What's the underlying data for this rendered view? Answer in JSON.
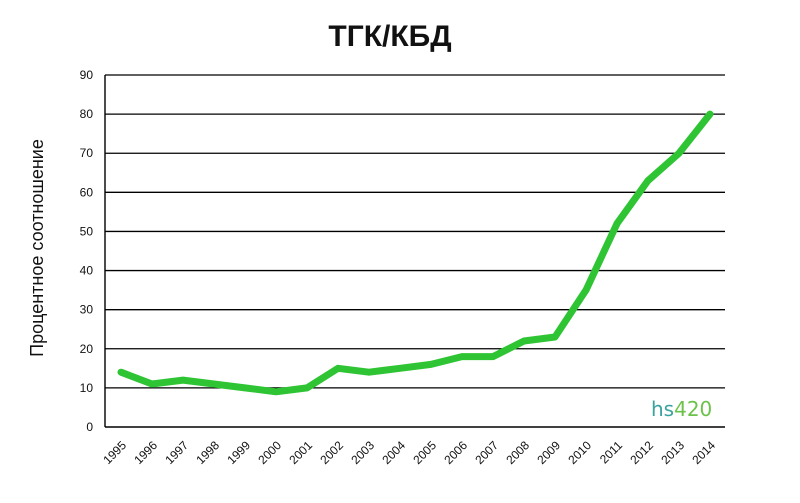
{
  "chart_data": {
    "type": "line",
    "title": "ТГК/КБД",
    "xlabel": "",
    "ylabel": "Процентное соотношение",
    "ylim": [
      0,
      90
    ],
    "yticks": [
      "0",
      "10",
      "20",
      "30",
      "40",
      "50",
      "60",
      "70",
      "80",
      "90"
    ],
    "categories": [
      "1995",
      "1996",
      "1997",
      "1998",
      "1999",
      "2000",
      "2001",
      "2002",
      "2003",
      "2004",
      "2005",
      "2006",
      "2007",
      "2008",
      "2009",
      "2010",
      "2011",
      "2012",
      "2013",
      "2014"
    ],
    "series": [
      {
        "values": [
          14,
          11,
          12,
          11,
          10,
          9,
          10,
          15,
          14,
          15,
          16,
          18,
          18,
          22,
          23,
          35,
          52,
          63,
          70,
          80
        ]
      }
    ],
    "grid": true,
    "colors": {
      "line": "#2ec433",
      "grid": "#000000"
    }
  },
  "watermark": {
    "part1": "hs",
    "part2": "420"
  }
}
